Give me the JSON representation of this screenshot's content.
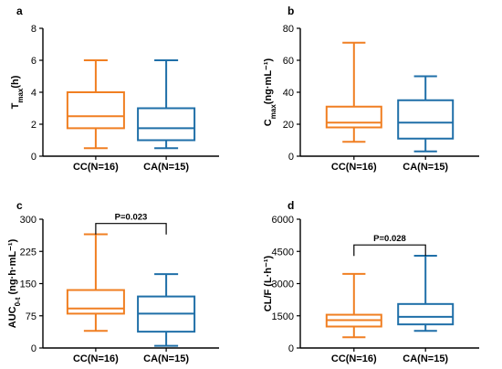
{
  "chart_data": [
    {
      "type": "box",
      "panel": "a",
      "ylabel_main": "T",
      "ylabel_sub": "max",
      "ylabel_unit": "(h)",
      "ylim": [
        0,
        8
      ],
      "yticks": [
        0,
        2,
        4,
        6,
        8
      ],
      "categories": [
        "CC(N=16)",
        "CA(N=15)"
      ],
      "colors": [
        "#F07F22",
        "#1F6FA8"
      ],
      "boxes": [
        {
          "min": 0.5,
          "q1": 1.75,
          "median": 2.5,
          "q3": 4.0,
          "max": 6.0
        },
        {
          "min": 0.5,
          "q1": 1.0,
          "median": 1.75,
          "q3": 3.0,
          "max": 6.0
        }
      ],
      "pvalue": ""
    },
    {
      "type": "box",
      "panel": "b",
      "ylabel_main": "C",
      "ylabel_sub": "max",
      "ylabel_unit": "(ng·mL⁻¹)",
      "ylim": [
        0,
        80
      ],
      "yticks": [
        0,
        20,
        40,
        60,
        80
      ],
      "categories": [
        "CC(N=16)",
        "CA(N=15)"
      ],
      "colors": [
        "#F07F22",
        "#1F6FA8"
      ],
      "boxes": [
        {
          "min": 9,
          "q1": 18,
          "median": 21,
          "q3": 31,
          "max": 71
        },
        {
          "min": 3,
          "q1": 11,
          "median": 21,
          "q3": 35,
          "max": 50
        }
      ],
      "pvalue": ""
    },
    {
      "type": "box",
      "panel": "c",
      "ylabel_main": "AUC",
      "ylabel_sub": "0-t",
      "ylabel_unit": " (ng·h·mL⁻¹)",
      "ylim": [
        0,
        300
      ],
      "yticks": [
        0,
        75,
        150,
        225,
        300
      ],
      "categories": [
        "CC(N=16)",
        "CA(N=15)"
      ],
      "colors": [
        "#F07F22",
        "#1F6FA8"
      ],
      "boxes": [
        {
          "min": 40,
          "q1": 80,
          "median": 92,
          "q3": 135,
          "max": 265
        },
        {
          "min": 5,
          "q1": 38,
          "median": 80,
          "q3": 120,
          "max": 172
        }
      ],
      "pvalue": "P=0.023",
      "bracket_y": 290
    },
    {
      "type": "box",
      "panel": "d",
      "ylabel_main": "CL/F",
      "ylabel_sub": "",
      "ylabel_unit": " (L·h⁻¹)",
      "ylim": [
        0,
        6000
      ],
      "yticks": [
        0,
        1500,
        3000,
        4500,
        6000
      ],
      "categories": [
        "CC(N=16)",
        "CA(N=15)"
      ],
      "colors": [
        "#F07F22",
        "#1F6FA8"
      ],
      "boxes": [
        {
          "min": 500,
          "q1": 1000,
          "median": 1300,
          "q3": 1550,
          "max": 3450
        },
        {
          "min": 800,
          "q1": 1100,
          "median": 1450,
          "q3": 2050,
          "max": 4300
        }
      ],
      "pvalue": "P=0.028",
      "bracket_y": 4800
    }
  ]
}
